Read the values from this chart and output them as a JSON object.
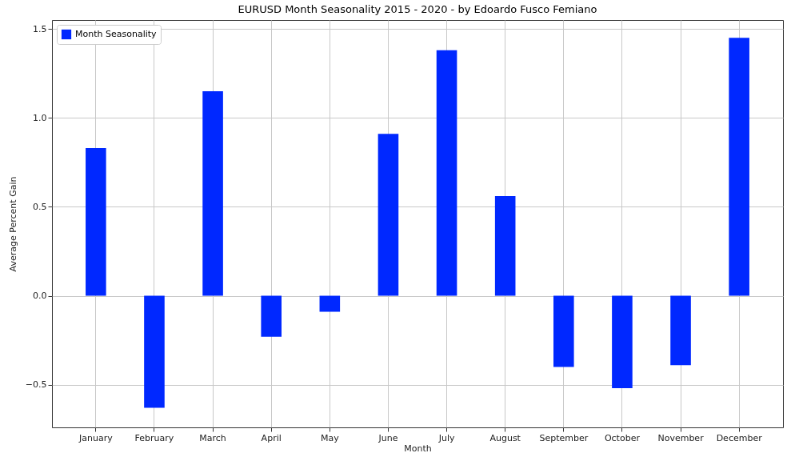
{
  "chart_data": {
    "type": "bar",
    "title": "EURUSD Month Seasonality 2015 - 2020  - by Edoardo Fusco Femiano",
    "xlabel": "Month",
    "ylabel": "Average Percent Gain",
    "categories": [
      "January",
      "February",
      "March",
      "April",
      "May",
      "June",
      "July",
      "August",
      "September",
      "October",
      "November",
      "December"
    ],
    "series": [
      {
        "name": "Month Seasonality",
        "color": "#0028ff",
        "values": [
          0.83,
          -0.63,
          1.15,
          -0.23,
          -0.09,
          0.91,
          1.38,
          0.56,
          -0.4,
          -0.52,
          -0.39,
          1.45
        ]
      }
    ],
    "ylim": [
      -0.74,
      1.55
    ],
    "yticks": [
      {
        "value": -0.5,
        "label": "−0.5"
      },
      {
        "value": 0,
        "label": "0.0"
      },
      {
        "value": 0.5,
        "label": "0.5"
      },
      {
        "value": 1,
        "label": "1.0"
      },
      {
        "value": 1.5,
        "label": "1.5"
      }
    ],
    "grid": true,
    "legend": "top left"
  }
}
